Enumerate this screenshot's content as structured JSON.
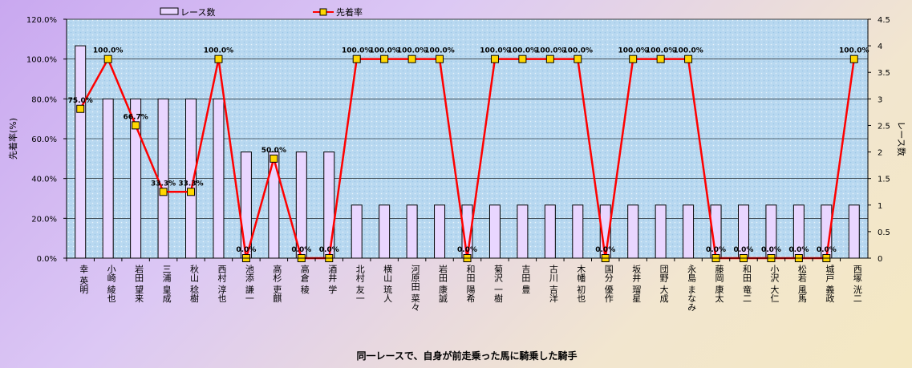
{
  "chart_data": {
    "type": "bar+line",
    "xlabel": "同一レースで、自身が前走乗った馬に騎乗した騎手",
    "ylabel_left": "先着率(%)",
    "ylabel_right": "レース数",
    "ylim_left": [
      0,
      120
    ],
    "ylim_right": [
      0,
      4.5
    ],
    "yticks_left": [
      "0.0%",
      "20.0%",
      "40.0%",
      "60.0%",
      "80.0%",
      "100.0%",
      "120.0%"
    ],
    "yticks_right": [
      "0",
      "0.5",
      "1",
      "1.5",
      "2",
      "2.5",
      "3",
      "3.5",
      "4",
      "4.5"
    ],
    "grid": true,
    "legend_position": "top",
    "categories": [
      "幸 英明",
      "小崎 綾也",
      "岩田 望来",
      "三浦 皇成",
      "秋山 稔樹",
      "西村 淳也",
      "池添 謙一",
      "高杉 吏麒",
      "高倉 稜",
      "酒井 学",
      "北村 友一",
      "横山 琉人",
      "河原田 菜々",
      "岩田 康誠",
      "和田 陽希",
      "菊沢 一樹",
      "吉田 豊",
      "古川 吉洋",
      "木幡 初也",
      "国分 優作",
      "坂井 瑠星",
      "団野 大成",
      "永島 まなみ",
      "藤岡 康太",
      "和田 竜二",
      "小沢 大仁",
      "松若 風馬",
      "城戸 義政",
      "西塚 洸二"
    ],
    "series": [
      {
        "name": "レース数",
        "axis": "right",
        "color": "#e9d6ff",
        "values": [
          4,
          3,
          3,
          3,
          3,
          3,
          2,
          2,
          2,
          2,
          1,
          1,
          1,
          1,
          1,
          1,
          1,
          1,
          1,
          1,
          1,
          1,
          1,
          1,
          1,
          1,
          1,
          1,
          1
        ]
      },
      {
        "name": "先着率",
        "axis": "left",
        "color": "#ff0000",
        "marker_color": "#ffd700",
        "values": [
          75.0,
          100.0,
          66.7,
          33.3,
          33.3,
          100.0,
          0.0,
          50.0,
          0.0,
          0.0,
          100.0,
          100.0,
          100.0,
          100.0,
          0.0,
          100.0,
          100.0,
          100.0,
          100.0,
          0.0,
          100.0,
          100.0,
          100.0,
          0.0,
          0.0,
          0.0,
          0.0,
          0.0,
          100.0
        ],
        "data_labels": [
          "75.0%",
          "100.0%",
          "66.7%",
          "33.3%",
          "33.3%",
          "100.0%",
          "0.0%",
          "50.0%",
          "0.0%",
          "0.0%",
          "100.0%",
          "100.0%",
          "100.0%",
          "100.0%",
          "0.0%",
          "100.0%",
          "100.0%",
          "100.0%",
          "100.0%",
          "0.0%",
          "100.0%",
          "100.0%",
          "100.0%",
          "0.0%",
          "0.0%",
          "0.0%",
          "0.0%",
          "0.0%",
          "100.0%"
        ]
      }
    ]
  }
}
